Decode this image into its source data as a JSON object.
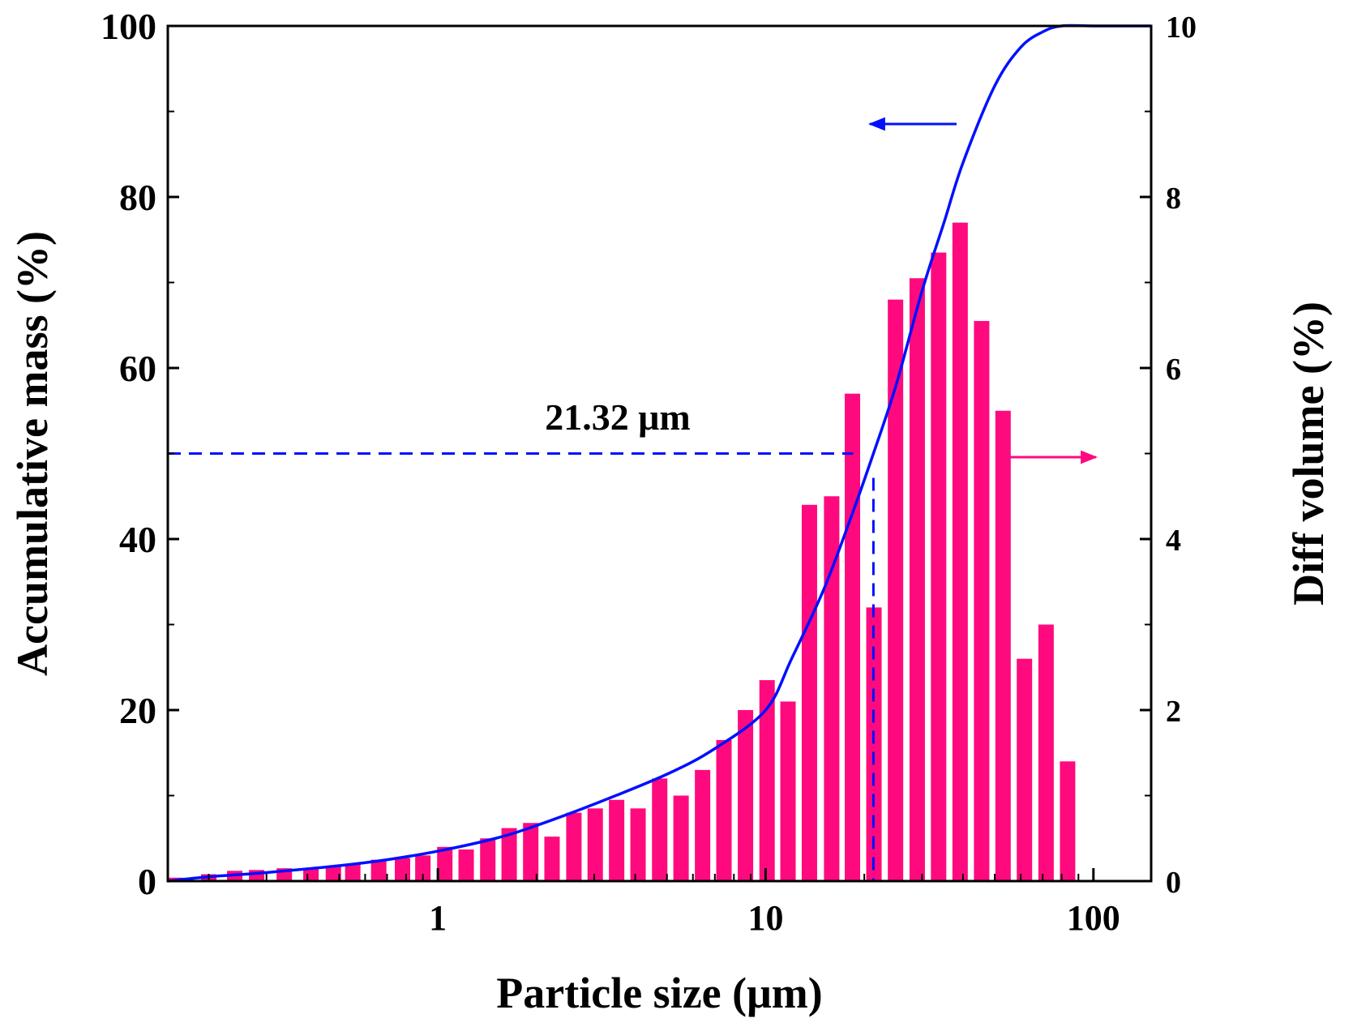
{
  "chart_data": {
    "type": "bar",
    "xlabel": "Particle size (μm)",
    "ylabel": "Accumulative mass (%)",
    "y2label": "Diff volume (%)",
    "xscale": "log",
    "xlim": [
      0.15,
      150
    ],
    "ylim": [
      0,
      100
    ],
    "y2lim": [
      0,
      10
    ],
    "x_ticks": [
      1,
      10,
      100
    ],
    "x_tick_labels": [
      "1",
      "10",
      "100"
    ],
    "y_ticks": [
      0,
      20,
      40,
      60,
      80,
      100
    ],
    "y_tick_labels": [
      "0",
      "20",
      "40",
      "60",
      "80",
      "100"
    ],
    "y2_ticks": [
      0,
      2,
      4,
      6,
      8,
      10
    ],
    "y2_tick_labels": [
      "0",
      "2",
      "4",
      "6",
      "8",
      "10"
    ],
    "grid": false,
    "series": [
      {
        "name": "Diff volume",
        "axis": "right",
        "style": "bar",
        "color": "#ff0a7e",
        "x": [
          0.158,
          0.2,
          0.24,
          0.28,
          0.34,
          0.41,
          0.48,
          0.55,
          0.66,
          0.78,
          0.9,
          1.05,
          1.22,
          1.42,
          1.65,
          1.92,
          2.23,
          2.6,
          3.02,
          3.51,
          4.08,
          4.75,
          5.52,
          6.42,
          7.46,
          8.68,
          10.1,
          11.7,
          13.6,
          15.9,
          18.4,
          21.4,
          24.9,
          29.0,
          33.7,
          39.2,
          45.6,
          53.0,
          61.6,
          71.7,
          83.4
        ],
        "values": [
          0.04,
          0.08,
          0.12,
          0.13,
          0.15,
          0.15,
          0.17,
          0.2,
          0.25,
          0.27,
          0.3,
          0.4,
          0.37,
          0.5,
          0.62,
          0.68,
          0.52,
          0.8,
          0.85,
          0.95,
          0.85,
          1.2,
          1.0,
          1.3,
          1.65,
          2.0,
          2.35,
          2.1,
          4.4,
          4.5,
          5.7,
          3.2,
          6.8,
          7.05,
          7.35,
          7.7,
          6.55,
          5.5,
          2.6,
          3.0,
          1.4
        ]
      },
      {
        "name": "Accumulative mass",
        "axis": "left",
        "style": "line",
        "color": "#0010ff",
        "x": [
          0.15,
          0.2,
          0.3,
          0.5,
          0.7,
          1.0,
          1.5,
          2.0,
          3.0,
          5.0,
          7.0,
          10.0,
          12.0,
          15.0,
          18.0,
          21.32,
          25.0,
          30.0,
          35.0,
          40.0,
          50.0,
          60.0,
          70.0,
          80.0,
          100.0,
          150.0
        ],
        "values": [
          0,
          0.5,
          1.0,
          1.8,
          2.5,
          3.5,
          5.0,
          6.5,
          9.0,
          12.5,
          15.5,
          20.0,
          26.0,
          34.0,
          42.0,
          50.0,
          58.0,
          69.0,
          77.0,
          84.0,
          93.0,
          97.5,
          99.3,
          100,
          100,
          100
        ]
      }
    ],
    "annotations": {
      "d50_label": "21.32 μm",
      "d50_x": 21.32,
      "d50_y": 50
    }
  },
  "colors": {
    "bar": "#ff0a7e",
    "line": "#0010ff",
    "axis": "#000000"
  }
}
